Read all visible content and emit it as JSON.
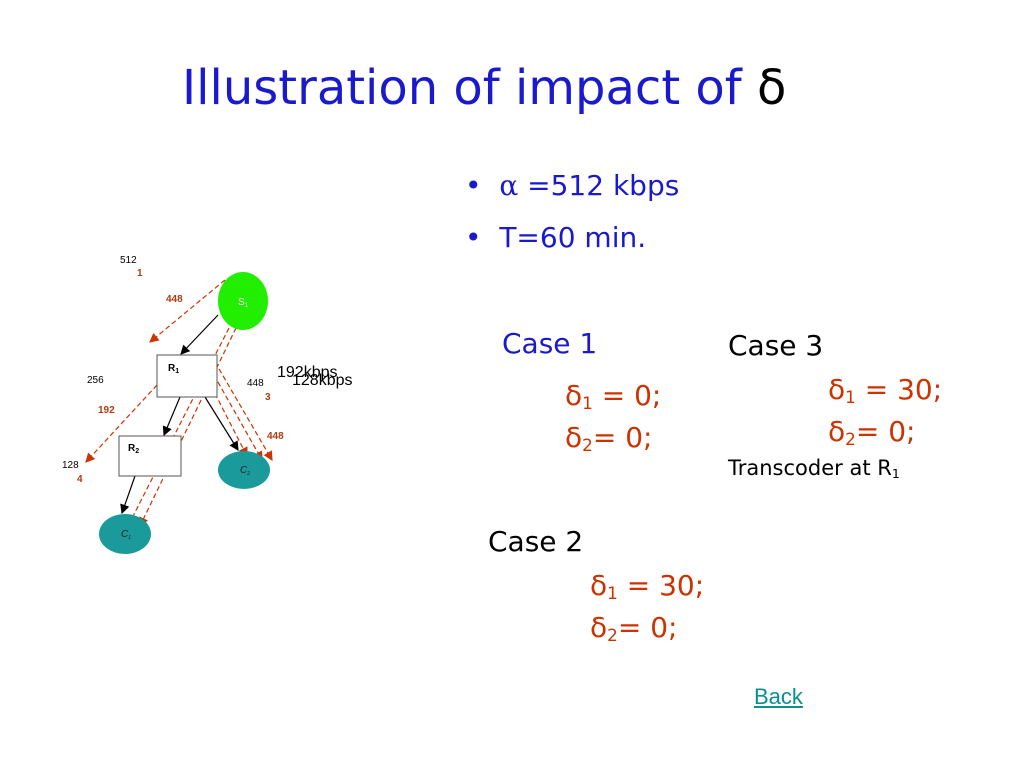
{
  "header": {
    "title": "Illustration of impact of",
    "title_symbol": "δ"
  },
  "bullets": [
    {
      "symbol": "α",
      "text": " =512 kbps"
    },
    {
      "text": "T=60 min."
    }
  ],
  "diagram": {
    "nodes": {
      "s": {
        "base": "S",
        "sub": "1"
      },
      "r1": {
        "base": "R",
        "sub": "1"
      },
      "r2": {
        "base": "R",
        "sub": "2"
      },
      "c2": {
        "base": "C",
        "sub": "2"
      },
      "c1": {
        "base": "C",
        "sub": "1"
      }
    },
    "labels": {
      "rate_512": "512",
      "num_1": "1",
      "red_448_a": "448",
      "rate_256": "256",
      "red_192": "192",
      "rate_128": "128",
      "num_4": "4",
      "rate_448": "448",
      "num_3": "3",
      "red_448_b": "448",
      "kbps_192": "192kbps",
      "kbps_128": "128kbps"
    }
  },
  "cases": {
    "case1": {
      "title": "Case 1",
      "lines": [
        {
          "base": "δ",
          "sub": "1",
          "rest": " = 0;"
        },
        {
          "base": "δ",
          "sub": "2",
          "rest": "= 0;"
        }
      ]
    },
    "case3": {
      "title": "Case 3",
      "lines": [
        {
          "base": "δ",
          "sub": "1",
          "rest": " = 30;"
        },
        {
          "base": "δ",
          "sub": "2",
          "rest": "=  0;"
        }
      ],
      "note": {
        "base": "Transcoder at  R",
        "sub": "1"
      }
    },
    "case2": {
      "title": "Case 2",
      "lines": [
        {
          "base": "δ",
          "sub": "1",
          "rest": " = 30;"
        },
        {
          "base": "δ",
          "sub": "2",
          "rest": "= 0;"
        }
      ]
    }
  },
  "footer": {
    "link": "Back"
  }
}
